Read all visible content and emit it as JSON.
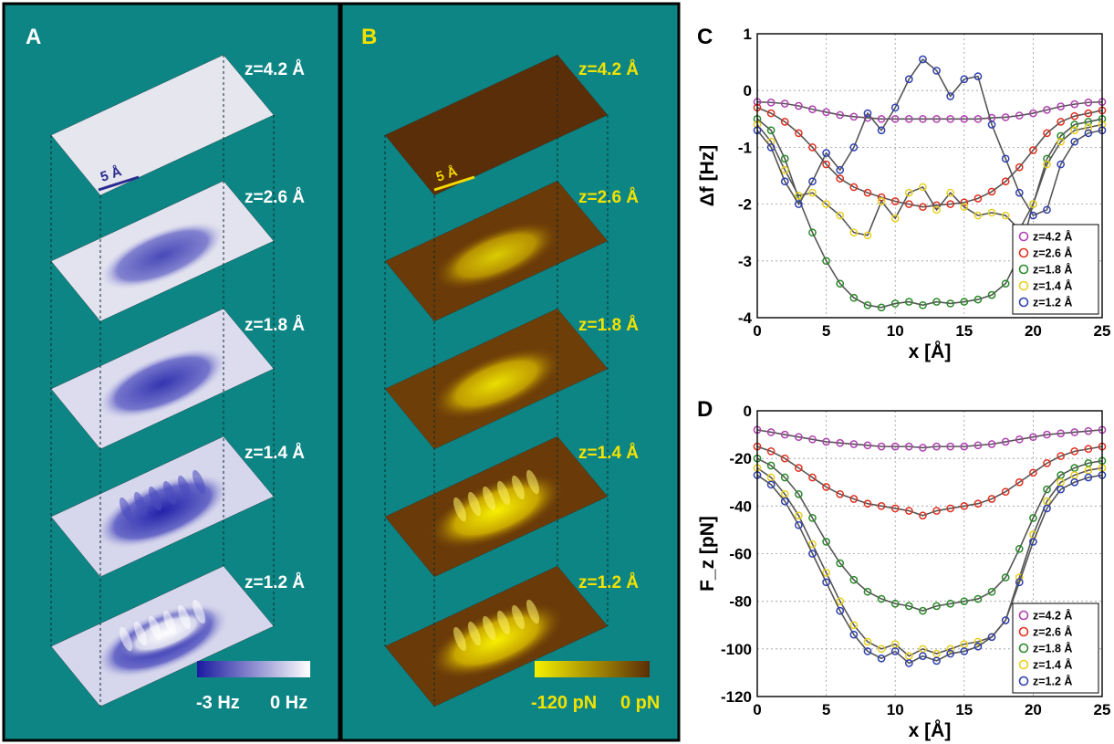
{
  "panels": {
    "A": {
      "label": "A",
      "scale_bar": "5 Å",
      "z_labels": [
        "z=4.2 Å",
        "z=2.6 Å",
        "z=1.8 Å",
        "z=1.4 Å",
        "z=1.2 Å"
      ],
      "colorbar": {
        "min_label": "-3 Hz",
        "max_label": "0 Hz",
        "min_color": "#1a1aa0",
        "max_color": "#ffffff"
      },
      "background": "#0e8585",
      "label_color": "#ffffff"
    },
    "B": {
      "label": "B",
      "scale_bar": "5 Å",
      "z_labels": [
        "z=4.2 Å",
        "z=2.6 Å",
        "z=1.8 Å",
        "z=1.4 Å",
        "z=1.2 Å"
      ],
      "colorbar": {
        "min_label": "-120 pN",
        "max_label": "0 pN",
        "min_color": "#f4f000",
        "max_color": "#5a2e06"
      },
      "background": "#0e8585",
      "label_color": "#f2e200"
    }
  },
  "chart_data": [
    {
      "panel": "C",
      "type": "line",
      "xlabel": "x [Å]",
      "ylabel": "Δf [Hz]",
      "xlim": [
        0,
        25
      ],
      "ylim": [
        -4,
        1
      ],
      "xticks": [
        0,
        5,
        10,
        15,
        20,
        25
      ],
      "yticks": [
        1,
        0,
        -1,
        -2,
        -3,
        -4
      ],
      "grid": true,
      "legend_position": "lower-right",
      "x": [
        0,
        1,
        2,
        3,
        4,
        5,
        6,
        7,
        8,
        9,
        10,
        11,
        12,
        13,
        14,
        15,
        16,
        17,
        18,
        19,
        20,
        21,
        22,
        23,
        24,
        25
      ],
      "series": [
        {
          "name": "z=4.2 Å",
          "color": "#b040b0",
          "values": [
            -0.2,
            -0.21,
            -0.23,
            -0.27,
            -0.33,
            -0.38,
            -0.43,
            -0.46,
            -0.48,
            -0.5,
            -0.5,
            -0.5,
            -0.5,
            -0.5,
            -0.5,
            -0.5,
            -0.5,
            -0.48,
            -0.47,
            -0.44,
            -0.4,
            -0.34,
            -0.28,
            -0.24,
            -0.21,
            -0.2
          ]
        },
        {
          "name": "z=2.6 Å",
          "color": "#e03020",
          "values": [
            -0.3,
            -0.4,
            -0.55,
            -0.75,
            -1.0,
            -1.3,
            -1.55,
            -1.7,
            -1.8,
            -1.88,
            -1.95,
            -2.0,
            -2.05,
            -2.02,
            -2.0,
            -1.97,
            -1.9,
            -1.78,
            -1.6,
            -1.35,
            -1.05,
            -0.75,
            -0.55,
            -0.45,
            -0.4,
            -0.35
          ]
        },
        {
          "name": "z=1.8 Å",
          "color": "#2a8a2a",
          "values": [
            -0.5,
            -0.7,
            -1.2,
            -1.9,
            -2.5,
            -3.0,
            -3.4,
            -3.65,
            -3.78,
            -3.82,
            -3.75,
            -3.72,
            -3.78,
            -3.72,
            -3.75,
            -3.72,
            -3.68,
            -3.6,
            -3.4,
            -2.9,
            -2.0,
            -1.2,
            -0.8,
            -0.6,
            -0.55,
            -0.5
          ]
        },
        {
          "name": "z=1.4 Å",
          "color": "#e8d020",
          "values": [
            -0.6,
            -0.9,
            -1.4,
            -1.85,
            -1.8,
            -2.0,
            -2.2,
            -2.5,
            -2.55,
            -1.95,
            -2.25,
            -1.8,
            -1.7,
            -2.1,
            -1.8,
            -2.05,
            -2.2,
            -2.15,
            -2.2,
            -2.45,
            -2.0,
            -1.3,
            -0.9,
            -0.7,
            -0.65,
            -0.6
          ]
        },
        {
          "name": "z=1.2 Å",
          "color": "#3040b0",
          "values": [
            -0.7,
            -1.0,
            -1.6,
            -2.0,
            -1.6,
            -1.1,
            -1.4,
            -1.0,
            -0.4,
            -0.7,
            -0.3,
            0.2,
            0.55,
            0.35,
            -0.1,
            0.2,
            0.25,
            -0.6,
            -1.2,
            -1.8,
            -2.2,
            -2.1,
            -1.3,
            -0.9,
            -0.75,
            -0.7
          ]
        }
      ]
    },
    {
      "panel": "D",
      "type": "line",
      "xlabel": "x [Å]",
      "ylabel": "F_z [pN]",
      "xlim": [
        0,
        25
      ],
      "ylim": [
        -120,
        0
      ],
      "xticks": [
        0,
        5,
        10,
        15,
        20,
        25
      ],
      "yticks": [
        0,
        -20,
        -40,
        -60,
        -80,
        -100,
        -120
      ],
      "grid": true,
      "legend_position": "lower-right",
      "x": [
        0,
        1,
        2,
        3,
        4,
        5,
        6,
        7,
        8,
        9,
        10,
        11,
        12,
        13,
        14,
        15,
        16,
        17,
        18,
        19,
        20,
        21,
        22,
        23,
        24,
        25
      ],
      "series": [
        {
          "name": "z=4.2 Å",
          "color": "#b040b0",
          "values": [
            -8,
            -9,
            -10,
            -11,
            -12,
            -13,
            -13.5,
            -14,
            -14.5,
            -15,
            -15,
            -15,
            -15.5,
            -15,
            -15,
            -15,
            -14.5,
            -14,
            -13,
            -12,
            -11,
            -10,
            -9.5,
            -9,
            -8.5,
            -8
          ]
        },
        {
          "name": "z=2.6 Å",
          "color": "#e03020",
          "values": [
            -15,
            -17,
            -20,
            -24,
            -28,
            -32,
            -35,
            -37,
            -39,
            -40,
            -41,
            -42,
            -44,
            -42,
            -41,
            -40,
            -39,
            -37,
            -34,
            -30,
            -26,
            -22,
            -19,
            -17,
            -16,
            -15
          ]
        },
        {
          "name": "z=1.8 Å",
          "color": "#2a8a2a",
          "values": [
            -20,
            -23,
            -28,
            -35,
            -45,
            -55,
            -64,
            -71,
            -76,
            -79,
            -81,
            -82,
            -84,
            -82,
            -81,
            -80,
            -79,
            -76,
            -70,
            -58,
            -45,
            -33,
            -27,
            -24,
            -22,
            -21
          ]
        },
        {
          "name": "z=1.4 Å",
          "color": "#e8d020",
          "values": [
            -24,
            -28,
            -35,
            -44,
            -56,
            -68,
            -80,
            -90,
            -97,
            -100,
            -98,
            -103,
            -100,
            -102,
            -100,
            -98,
            -97,
            -95,
            -88,
            -70,
            -52,
            -38,
            -30,
            -27,
            -25,
            -24
          ]
        },
        {
          "name": "z=1.2 Å",
          "color": "#3040b0",
          "values": [
            -27,
            -31,
            -38,
            -48,
            -60,
            -72,
            -84,
            -94,
            -101,
            -104,
            -101,
            -106,
            -103,
            -105,
            -102,
            -101,
            -99,
            -95,
            -88,
            -72,
            -55,
            -41,
            -33,
            -30,
            -28,
            -27
          ]
        }
      ]
    }
  ]
}
